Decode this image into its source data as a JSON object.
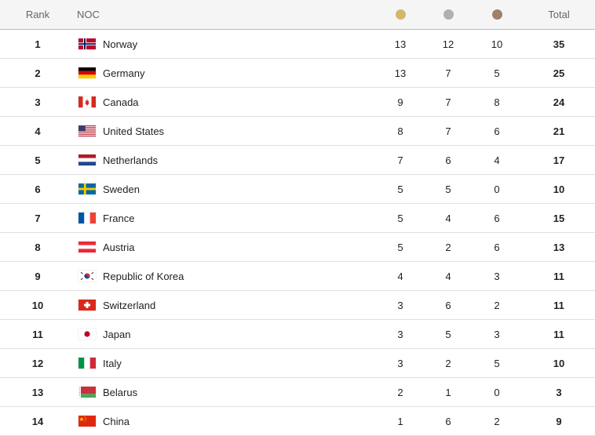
{
  "header": {
    "rank": "Rank",
    "noc": "NOC",
    "total": "Total",
    "gold_color": "#d4b86a",
    "silver_color": "#b0b0b0",
    "bronze_color": "#a0806a"
  },
  "rows": [
    {
      "rank": "1",
      "country": "Norway",
      "flag": "norway-flag-icon",
      "gold": "13",
      "silver": "12",
      "bronze": "10",
      "total": "35"
    },
    {
      "rank": "2",
      "country": "Germany",
      "flag": "germany-flag-icon",
      "gold": "13",
      "silver": "7",
      "bronze": "5",
      "total": "25"
    },
    {
      "rank": "3",
      "country": "Canada",
      "flag": "canada-flag-icon",
      "gold": "9",
      "silver": "7",
      "bronze": "8",
      "total": "24"
    },
    {
      "rank": "4",
      "country": "United States",
      "flag": "united-states-flag-icon",
      "gold": "8",
      "silver": "7",
      "bronze": "6",
      "total": "21"
    },
    {
      "rank": "5",
      "country": "Netherlands",
      "flag": "netherlands-flag-icon",
      "gold": "7",
      "silver": "6",
      "bronze": "4",
      "total": "17"
    },
    {
      "rank": "6",
      "country": "Sweden",
      "flag": "sweden-flag-icon",
      "gold": "5",
      "silver": "5",
      "bronze": "0",
      "total": "10"
    },
    {
      "rank": "7",
      "country": "France",
      "flag": "france-flag-icon",
      "gold": "5",
      "silver": "4",
      "bronze": "6",
      "total": "15"
    },
    {
      "rank": "8",
      "country": "Austria",
      "flag": "austria-flag-icon",
      "gold": "5",
      "silver": "2",
      "bronze": "6",
      "total": "13"
    },
    {
      "rank": "9",
      "country": "Republic of Korea",
      "flag": "korea-flag-icon",
      "gold": "4",
      "silver": "4",
      "bronze": "3",
      "total": "11"
    },
    {
      "rank": "10",
      "country": "Switzerland",
      "flag": "switzerland-flag-icon",
      "gold": "3",
      "silver": "6",
      "bronze": "2",
      "total": "11"
    },
    {
      "rank": "11",
      "country": "Japan",
      "flag": "japan-flag-icon",
      "gold": "3",
      "silver": "5",
      "bronze": "3",
      "total": "11"
    },
    {
      "rank": "12",
      "country": "Italy",
      "flag": "italy-flag-icon",
      "gold": "3",
      "silver": "2",
      "bronze": "5",
      "total": "10"
    },
    {
      "rank": "13",
      "country": "Belarus",
      "flag": "belarus-flag-icon",
      "gold": "2",
      "silver": "1",
      "bronze": "0",
      "total": "3"
    },
    {
      "rank": "14",
      "country": "China",
      "flag": "china-flag-icon",
      "gold": "1",
      "silver": "6",
      "bronze": "2",
      "total": "9"
    }
  ]
}
